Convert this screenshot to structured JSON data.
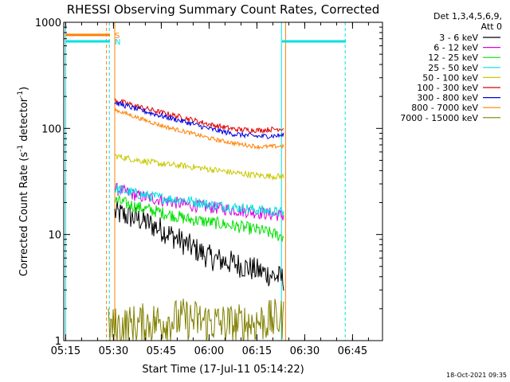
{
  "chart_data": {
    "type": "line",
    "title": "RHESSI Observing Summary Count Rates, Corrected",
    "xlabel": "Start Time (17-Jul-11 05:14:22)",
    "ylabel": "Corrected Count Rate (s",
    "ylabel_sup": "-1",
    "ylabel_mid": " detector",
    "ylabel_sup2": "-1",
    "ylabel_end": ")",
    "y_scale": "log",
    "ylim": [
      1,
      1000
    ],
    "xlim_minutes": [
      0,
      100
    ],
    "x_ticks": [
      {
        "label": "05:15",
        "minute": 0.6
      },
      {
        "label": "05:30",
        "minute": 15.6
      },
      {
        "label": "05:45",
        "minute": 30.6
      },
      {
        "label": "06:00",
        "minute": 45.6
      },
      {
        "label": "06:15",
        "minute": 60.6
      },
      {
        "label": "06:30",
        "minute": 75.6
      },
      {
        "label": "06:45",
        "minute": 90.6
      }
    ],
    "y_ticks": [
      {
        "label": "1000",
        "value": 1000
      },
      {
        "label": "100",
        "value": 100
      },
      {
        "label": "10",
        "value": 10
      },
      {
        "label": "1",
        "value": 1
      }
    ],
    "legend_header": [
      "Det 1,3,4,5,6,9,",
      "Att 0"
    ],
    "series": [
      {
        "name": "3 - 6 keV",
        "color": "#000000",
        "start": 16,
        "end": 69,
        "values": [
          16,
          14,
          11,
          8,
          6,
          5.3,
          4.5,
          3.8
        ],
        "noise": 0.12
      },
      {
        "name": "6 - 12 keV",
        "color": "#e000e0",
        "start": 16,
        "end": 69,
        "values": [
          27,
          23,
          21,
          19,
          18,
          17,
          16,
          15
        ],
        "noise": 0.06
      },
      {
        "name": "12 - 25 keV",
        "color": "#00e000",
        "start": 16,
        "end": 69,
        "values": [
          21,
          18,
          16,
          14,
          13,
          12,
          11,
          9.5
        ],
        "noise": 0.06
      },
      {
        "name": "25 - 50 keV",
        "color": "#00e0e0",
        "start": 16,
        "end": 69,
        "values": [
          27,
          24,
          22,
          21,
          19,
          18,
          17,
          16
        ],
        "noise": 0.05
      },
      {
        "name": "50 - 100 keV",
        "color": "#c8c800",
        "start": 16,
        "end": 69,
        "values": [
          55,
          50,
          46,
          44,
          41,
          38,
          36,
          35
        ],
        "noise": 0.03
      },
      {
        "name": "100 - 300 keV",
        "color": "#e00000",
        "start": 16,
        "end": 69,
        "values": [
          185,
          160,
          140,
          124,
          108,
          98,
          96,
          100
        ],
        "noise": 0.025
      },
      {
        "name": "300 - 800 keV",
        "color": "#0000e0",
        "start": 16,
        "end": 69,
        "values": [
          175,
          150,
          130,
          114,
          98,
          88,
          84,
          86
        ],
        "noise": 0.025
      },
      {
        "name": "800 - 7000 keV",
        "color": "#ff8000",
        "start": 16,
        "end": 69,
        "values": [
          150,
          125,
          105,
          92,
          80,
          72,
          67,
          68
        ],
        "noise": 0.02
      },
      {
        "name": "7000 - 15000 keV",
        "color": "#808000",
        "start": 14,
        "end": 69,
        "values": [
          1.3,
          1.4,
          1.5,
          1.6,
          1.5,
          1.4,
          1.5,
          1.6
        ],
        "noise": 0.2
      }
    ],
    "status_bars": [
      {
        "label": "S",
        "color": "#ff8000",
        "from": 0.6,
        "to": 14.5,
        "value": 760
      },
      {
        "label": "N",
        "color": "#00e0e0",
        "from": 0.6,
        "to": 14.5,
        "value": 660
      },
      {
        "label": "",
        "color": "#00e0e0",
        "from": 68.5,
        "to": 88.5,
        "value": 660
      }
    ],
    "vertical_lines": [
      {
        "minute": 0.6,
        "color": "#00e0e0",
        "dash": false
      },
      {
        "minute": 13.4,
        "color": "#ff8000",
        "dash": true
      },
      {
        "minute": 14.3,
        "color": "#00e0e0",
        "dash": true
      },
      {
        "minute": 16.0,
        "color": "#ff8000",
        "dash": false
      },
      {
        "minute": 68.3,
        "color": "#00e0e0",
        "dash": false
      },
      {
        "minute": 69.6,
        "color": "#ff8000",
        "dash": false
      },
      {
        "minute": 88.3,
        "color": "#00e0e0",
        "dash": true
      }
    ],
    "timestamp": "18-Oct-2021 09:35"
  }
}
